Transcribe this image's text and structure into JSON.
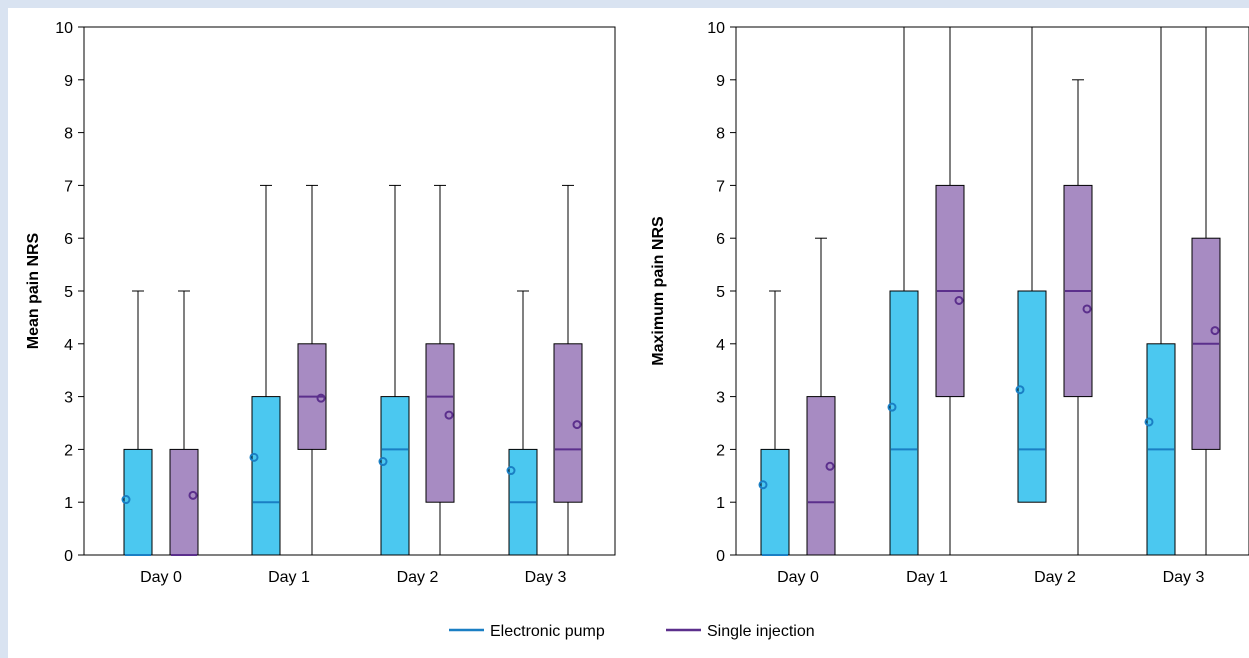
{
  "colors": {
    "electronic_pump_fill": "#4bc8f0",
    "electronic_pump_line": "#1a7fc4",
    "single_injection_fill": "#a78bc2",
    "single_injection_line": "#5b2f8c",
    "page_border": "#d9e3f1"
  },
  "legend": {
    "items": [
      {
        "label": "Electronic pump",
        "color": "#1a7fc4"
      },
      {
        "label": "Single injection",
        "color": "#5b2f8c"
      }
    ]
  },
  "chart_data": [
    {
      "type": "box",
      "ylabel": "Mean pain NRS",
      "xlabel": "",
      "ylim": [
        0,
        10
      ],
      "yticks": [
        0,
        1,
        2,
        3,
        4,
        5,
        6,
        7,
        8,
        9,
        10
      ],
      "categories": [
        "Day 0",
        "Day 1",
        "Day 2",
        "Day 3"
      ],
      "series": [
        {
          "name": "Electronic pump",
          "boxes": [
            {
              "min": 0,
              "q1": 0,
              "median": 0,
              "q3": 2,
              "max": 5,
              "mean": 1.05
            },
            {
              "min": 0,
              "q1": 0,
              "median": 1,
              "q3": 3,
              "max": 7,
              "mean": 1.85
            },
            {
              "min": 0,
              "q1": 0,
              "median": 2,
              "q3": 3,
              "max": 7,
              "mean": 1.77
            },
            {
              "min": 0,
              "q1": 0,
              "median": 1,
              "q3": 2,
              "max": 5,
              "mean": 1.6
            }
          ]
        },
        {
          "name": "Single injection",
          "boxes": [
            {
              "min": 0,
              "q1": 0,
              "median": 0,
              "q3": 2,
              "max": 5,
              "mean": 1.13
            },
            {
              "min": 0,
              "q1": 2,
              "median": 3,
              "q3": 4,
              "max": 7,
              "mean": 2.97
            },
            {
              "min": 0,
              "q1": 1,
              "median": 3,
              "q3": 4,
              "max": 7,
              "mean": 2.65
            },
            {
              "min": 0,
              "q1": 1,
              "median": 2,
              "q3": 4,
              "max": 7,
              "mean": 2.47
            }
          ]
        }
      ]
    },
    {
      "type": "box",
      "ylabel": "Maximum pain NRS",
      "xlabel": "",
      "ylim": [
        0,
        10
      ],
      "yticks": [
        0,
        1,
        2,
        3,
        4,
        5,
        6,
        7,
        8,
        9,
        10
      ],
      "categories": [
        "Day 0",
        "Day 1",
        "Day 2",
        "Day 3"
      ],
      "series": [
        {
          "name": "Electronic pump",
          "boxes": [
            {
              "min": 0,
              "q1": 0,
              "median": 0,
              "q3": 2,
              "max": 5,
              "mean": 1.33
            },
            {
              "min": 0,
              "q1": 0,
              "median": 2,
              "q3": 5,
              "max": 10,
              "mean": 2.8
            },
            {
              "min": 1,
              "q1": 1,
              "median": 2,
              "q3": 5,
              "max": 10,
              "mean": 3.13
            },
            {
              "min": 0,
              "q1": 0,
              "median": 2,
              "q3": 4,
              "max": 10,
              "mean": 2.52
            }
          ]
        },
        {
          "name": "Single injection",
          "boxes": [
            {
              "min": 0,
              "q1": 0,
              "median": 1,
              "q3": 3,
              "max": 6,
              "mean": 1.68
            },
            {
              "min": 0,
              "q1": 3,
              "median": 5,
              "q3": 7,
              "max": 10,
              "mean": 4.82
            },
            {
              "min": 0,
              "q1": 3,
              "median": 5,
              "q3": 7,
              "max": 9,
              "mean": 4.66
            },
            {
              "min": 0,
              "q1": 2,
              "median": 4,
              "q3": 6,
              "max": 10,
              "mean": 4.25
            }
          ]
        }
      ]
    }
  ]
}
